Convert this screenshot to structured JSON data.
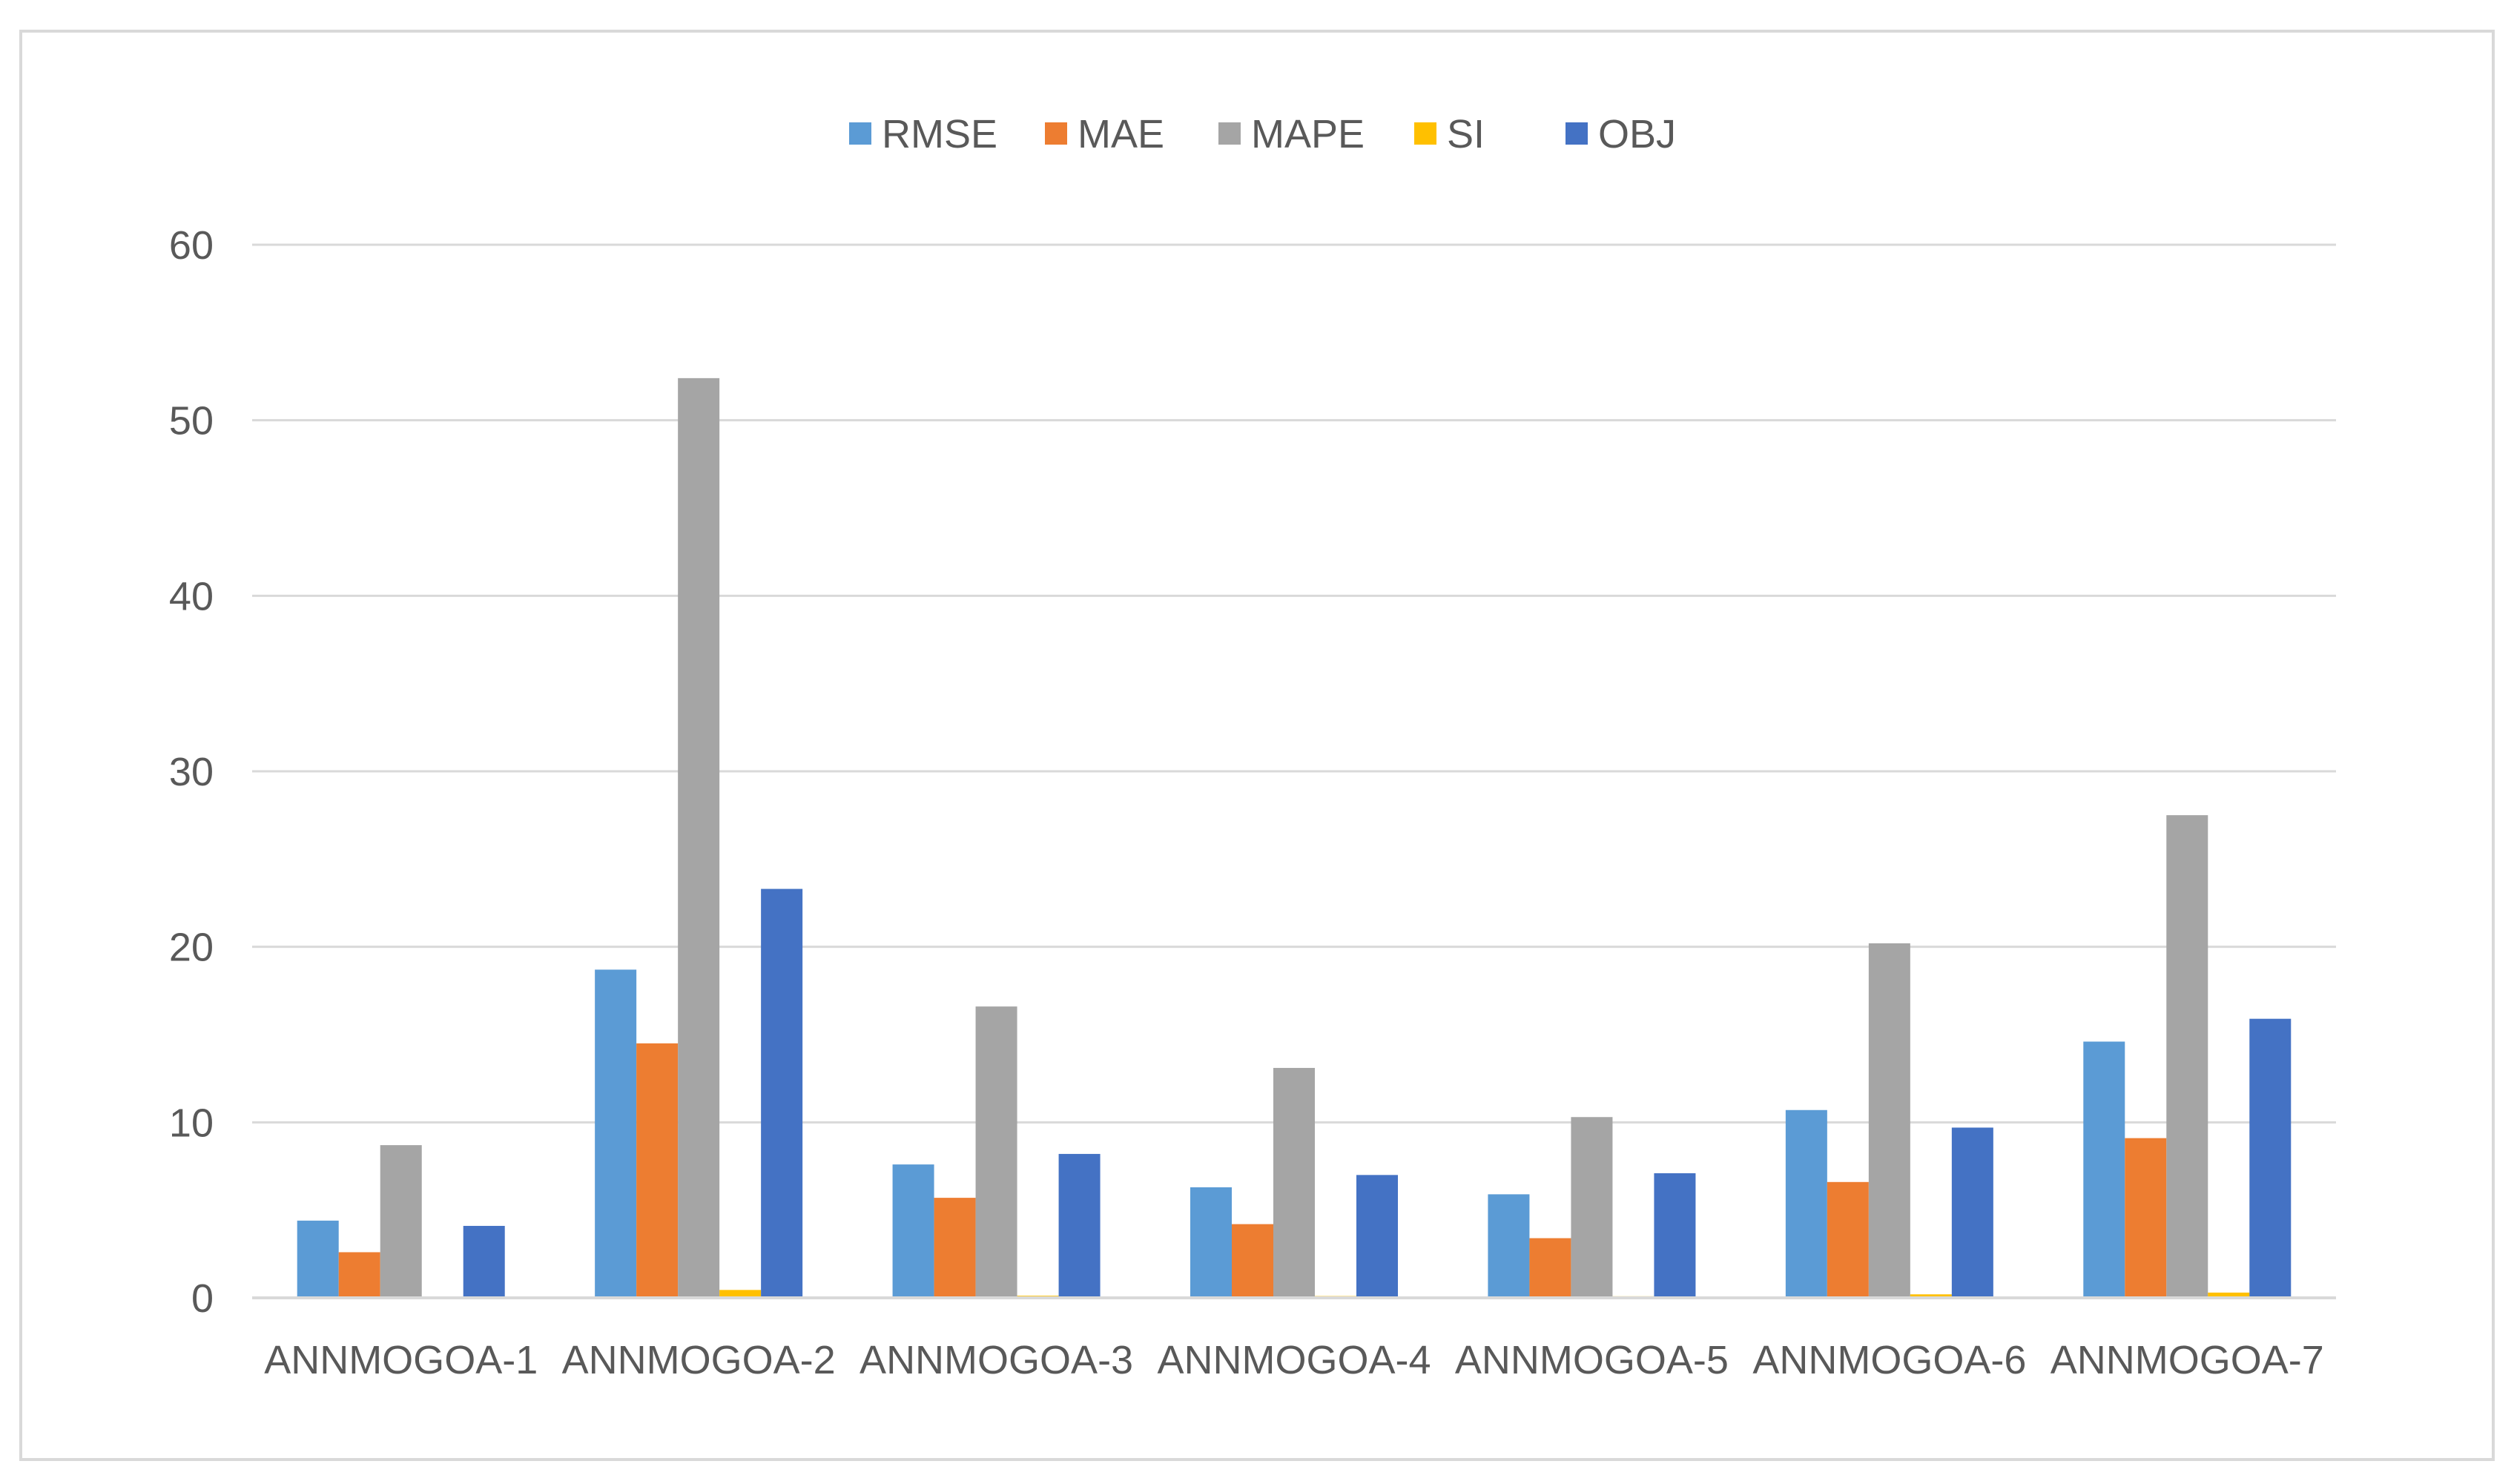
{
  "chart_data": {
    "type": "bar",
    "categories": [
      "ANNMOGOA-1",
      "ANNMOGOA-2",
      "ANNMOGOA-3",
      "ANNMOGOA-4",
      "ANNMOGOA-5",
      "ANNMOGOA-6",
      "ANNMOGOA-7"
    ],
    "series": [
      {
        "name": "RMSE",
        "color": "#5b9bd5",
        "values": [
          4.4,
          18.7,
          7.6,
          6.3,
          5.9,
          10.7,
          14.6
        ]
      },
      {
        "name": "MAE",
        "color": "#ed7d31",
        "values": [
          2.6,
          14.5,
          5.7,
          4.2,
          3.4,
          6.6,
          9.1
        ]
      },
      {
        "name": "MAPE",
        "color": "#a5a5a5",
        "values": [
          8.7,
          52.4,
          16.6,
          13.1,
          10.3,
          20.2,
          27.5
        ]
      },
      {
        "name": "SI",
        "color": "#ffc000",
        "values": [
          0.03,
          0.45,
          0.12,
          0.1,
          0.09,
          0.2,
          0.3
        ]
      },
      {
        "name": "OBJ",
        "color": "#4472c4",
        "values": [
          4.1,
          23.3,
          8.2,
          7.0,
          7.1,
          9.7,
          15.9
        ]
      }
    ],
    "ylim": [
      0,
      60
    ],
    "yticks": [
      0,
      10,
      20,
      30,
      40,
      50,
      60
    ],
    "grid": true,
    "legend_position": "top-center",
    "gridline_color": "#d9d9d9",
    "axis_color": "#d9d9d9",
    "text_color": "#595959"
  }
}
